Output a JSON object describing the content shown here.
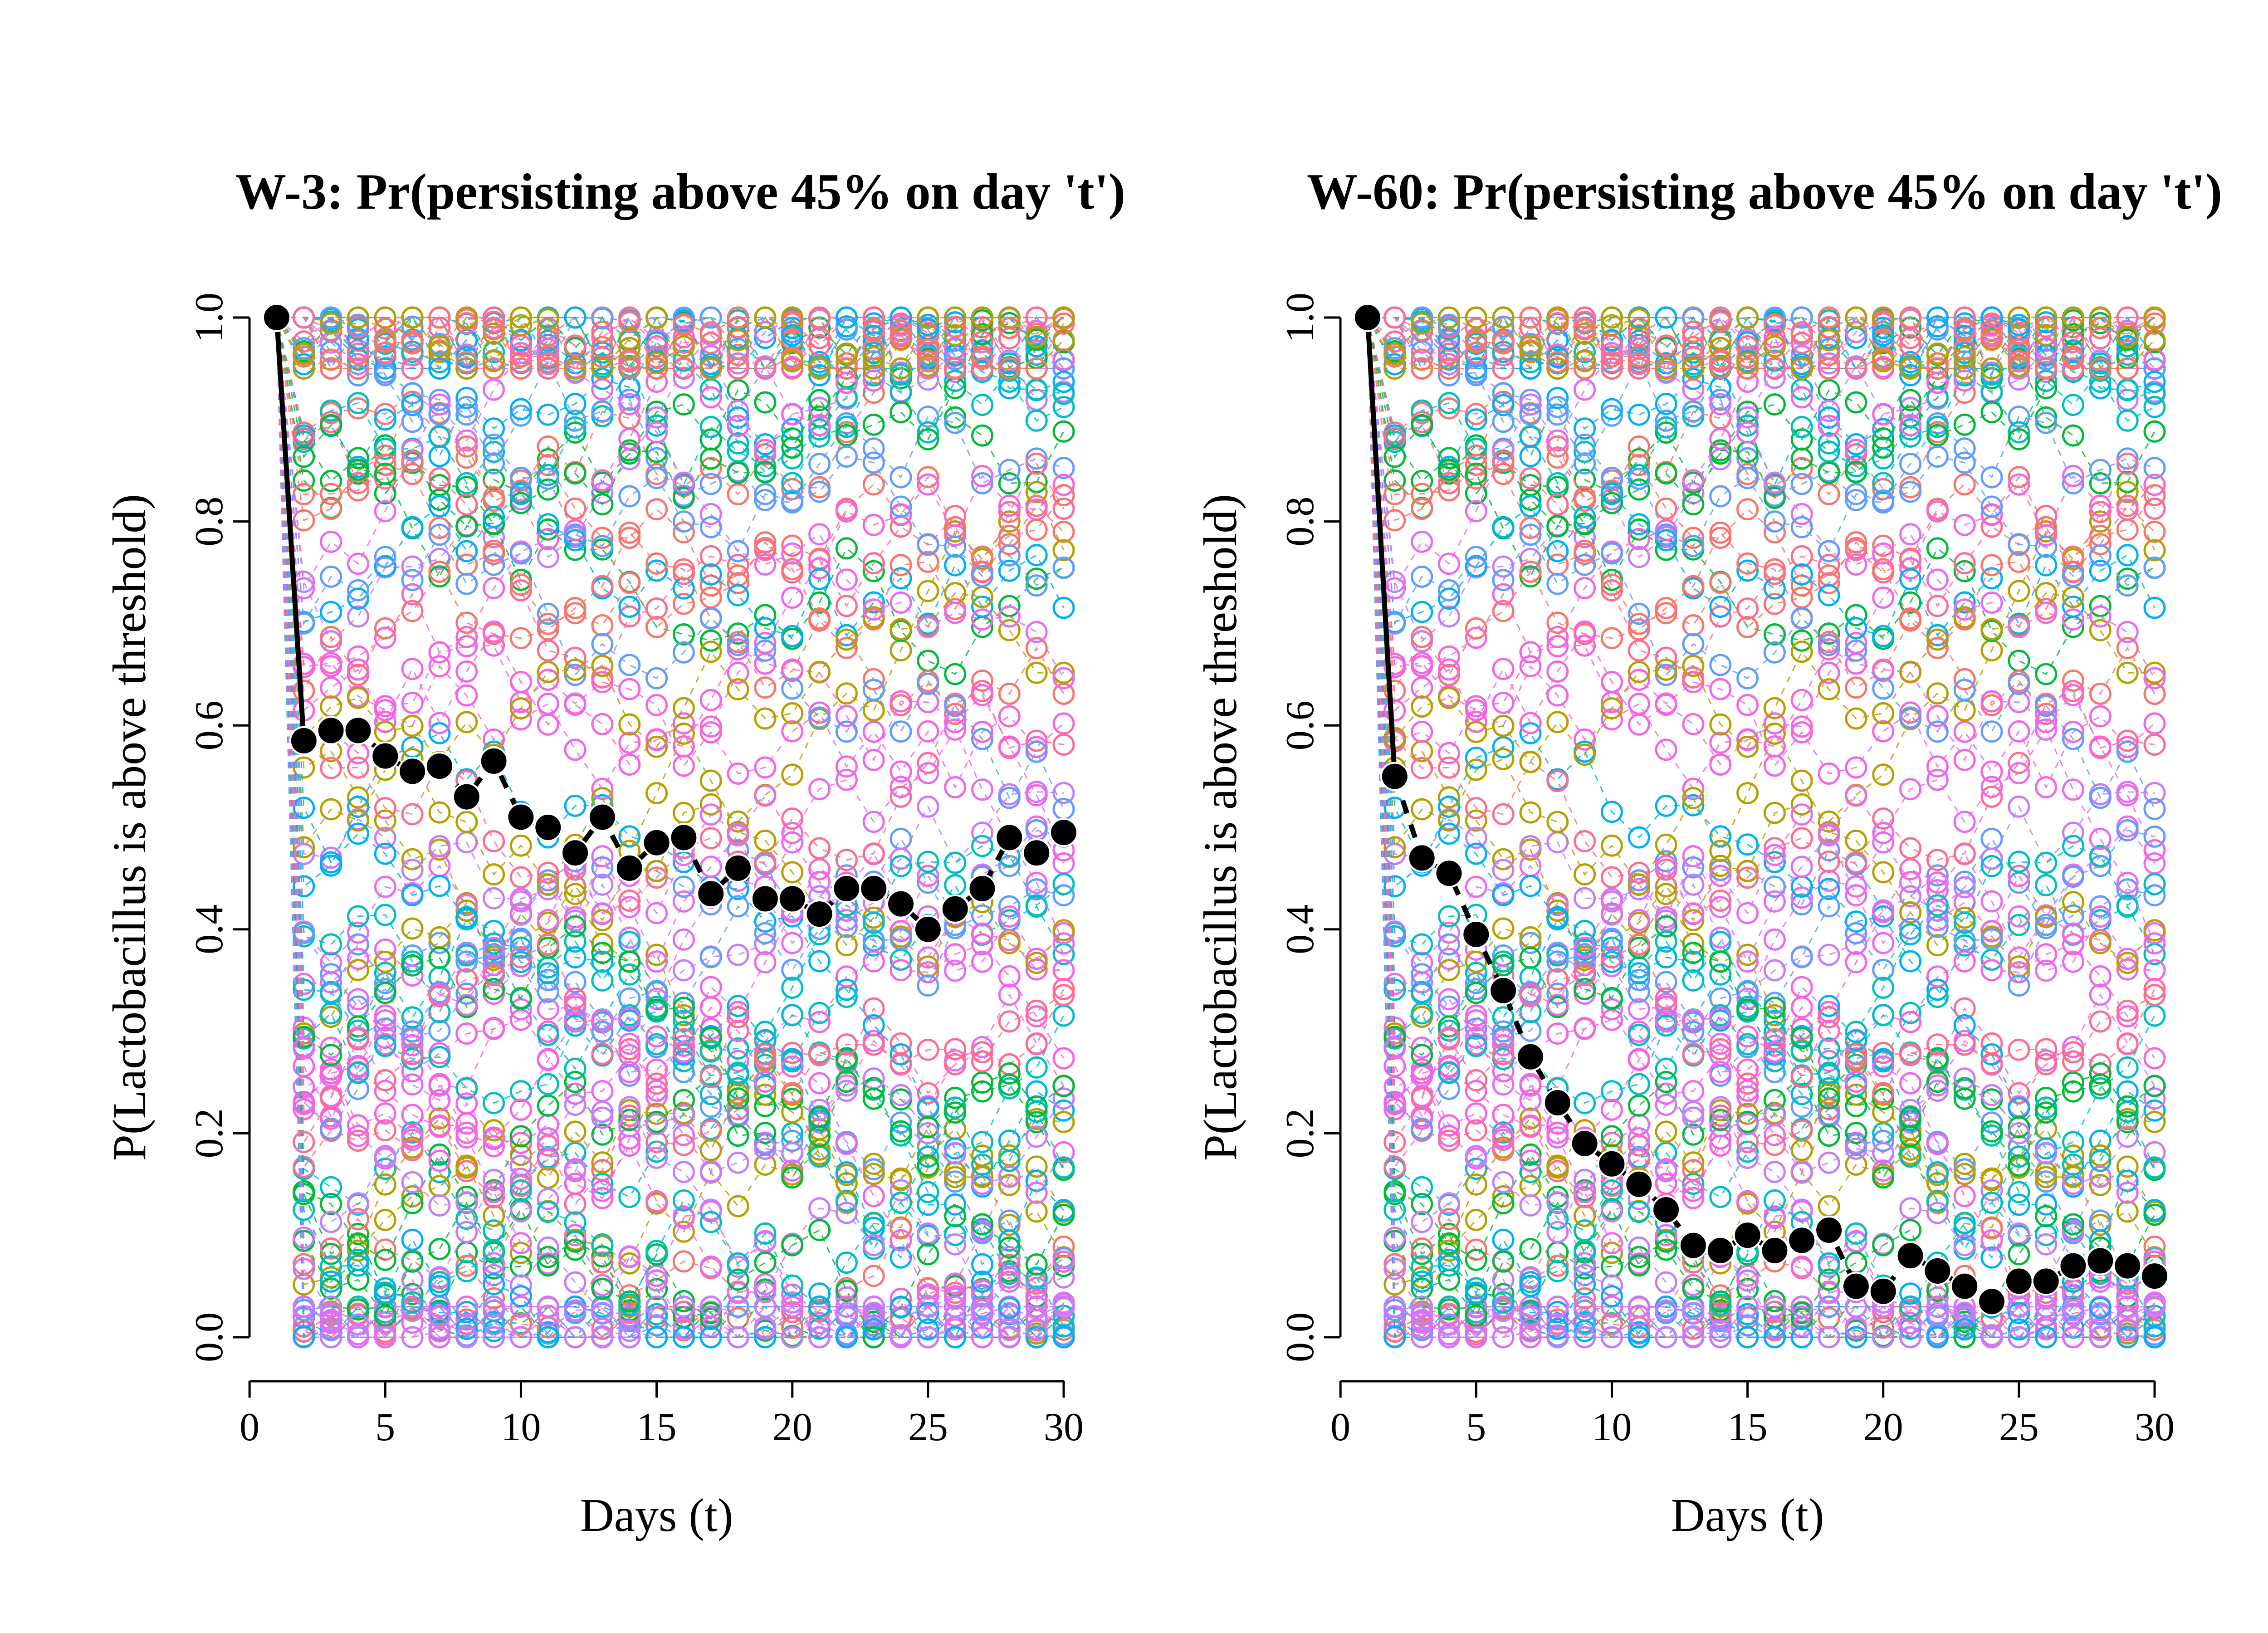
{
  "chart_data": [
    {
      "type": "scatter",
      "title": "W-3: Pr(persisting above 45% on day 't')",
      "xlabel": "Days (t)",
      "ylabel": "P(Lactobacillus is above threshold)",
      "xlim": [
        1,
        30
      ],
      "ylim": [
        0,
        1
      ],
      "xticks": [
        "0",
        "5",
        "10",
        "15",
        "20",
        "25",
        "30"
      ],
      "yticks": [
        "0.0",
        "0.2",
        "0.4",
        "0.6",
        "0.8",
        "1.0"
      ],
      "grid": false,
      "legend": "none",
      "background_style": "open circles, many individual trajectories with thin dashed lines",
      "background_colors": [
        "#F8766D",
        "#F564E3",
        "#00BFC4",
        "#00BA38",
        "#619CFF",
        "#B79F00",
        "#00B0F6",
        "#C77CFF",
        "#E76BF3",
        "#FF6C91"
      ],
      "summary_series": {
        "name": "",
        "color": "#000000",
        "x": [
          1,
          2,
          3,
          4,
          5,
          6,
          7,
          8,
          9,
          10,
          11,
          12,
          13,
          14,
          15,
          16,
          17,
          18,
          19,
          20,
          21,
          22,
          23,
          24,
          25,
          26,
          27,
          28,
          29,
          30
        ],
        "y": [
          1.0,
          0.585,
          0.595,
          0.595,
          0.57,
          0.555,
          0.56,
          0.53,
          0.565,
          0.51,
          0.5,
          0.475,
          0.51,
          0.46,
          0.485,
          0.49,
          0.435,
          0.46,
          0.43,
          0.43,
          0.415,
          0.44,
          0.44,
          0.425,
          0.4,
          0.42,
          0.44,
          0.49,
          0.475,
          0.495
        ]
      }
    },
    {
      "type": "scatter",
      "title": "W-60: Pr(persisting above 45% on day 't')",
      "xlabel": "Days (t)",
      "ylabel": "P(Lactobacillus is above threshold)",
      "xlim": [
        1,
        30
      ],
      "ylim": [
        0,
        1
      ],
      "xticks": [
        "0",
        "5",
        "10",
        "15",
        "20",
        "25",
        "30"
      ],
      "yticks": [
        "0.0",
        "0.2",
        "0.4",
        "0.6",
        "0.8",
        "1.0"
      ],
      "grid": false,
      "legend": "none",
      "background_style": "open circles, many individual trajectories with thin dashed lines",
      "background_colors": [
        "#F8766D",
        "#F564E3",
        "#00BFC4",
        "#00BA38",
        "#619CFF",
        "#B79F00",
        "#00B0F6",
        "#C77CFF",
        "#E76BF3",
        "#FF6C91"
      ],
      "summary_series": {
        "name": "",
        "color": "#000000",
        "x": [
          1,
          2,
          3,
          4,
          5,
          6,
          7,
          8,
          9,
          10,
          11,
          12,
          13,
          14,
          15,
          16,
          17,
          18,
          19,
          20,
          21,
          22,
          23,
          24,
          25,
          26,
          27,
          28,
          29,
          30
        ],
        "y": [
          1.0,
          0.55,
          0.47,
          0.455,
          0.395,
          0.34,
          0.275,
          0.23,
          0.19,
          0.17,
          0.15,
          0.125,
          0.09,
          0.085,
          0.1,
          0.085,
          0.095,
          0.105,
          0.05,
          0.045,
          0.08,
          0.065,
          0.05,
          0.035,
          0.055,
          0.055,
          0.07,
          0.075,
          0.07,
          0.06
        ]
      }
    }
  ]
}
